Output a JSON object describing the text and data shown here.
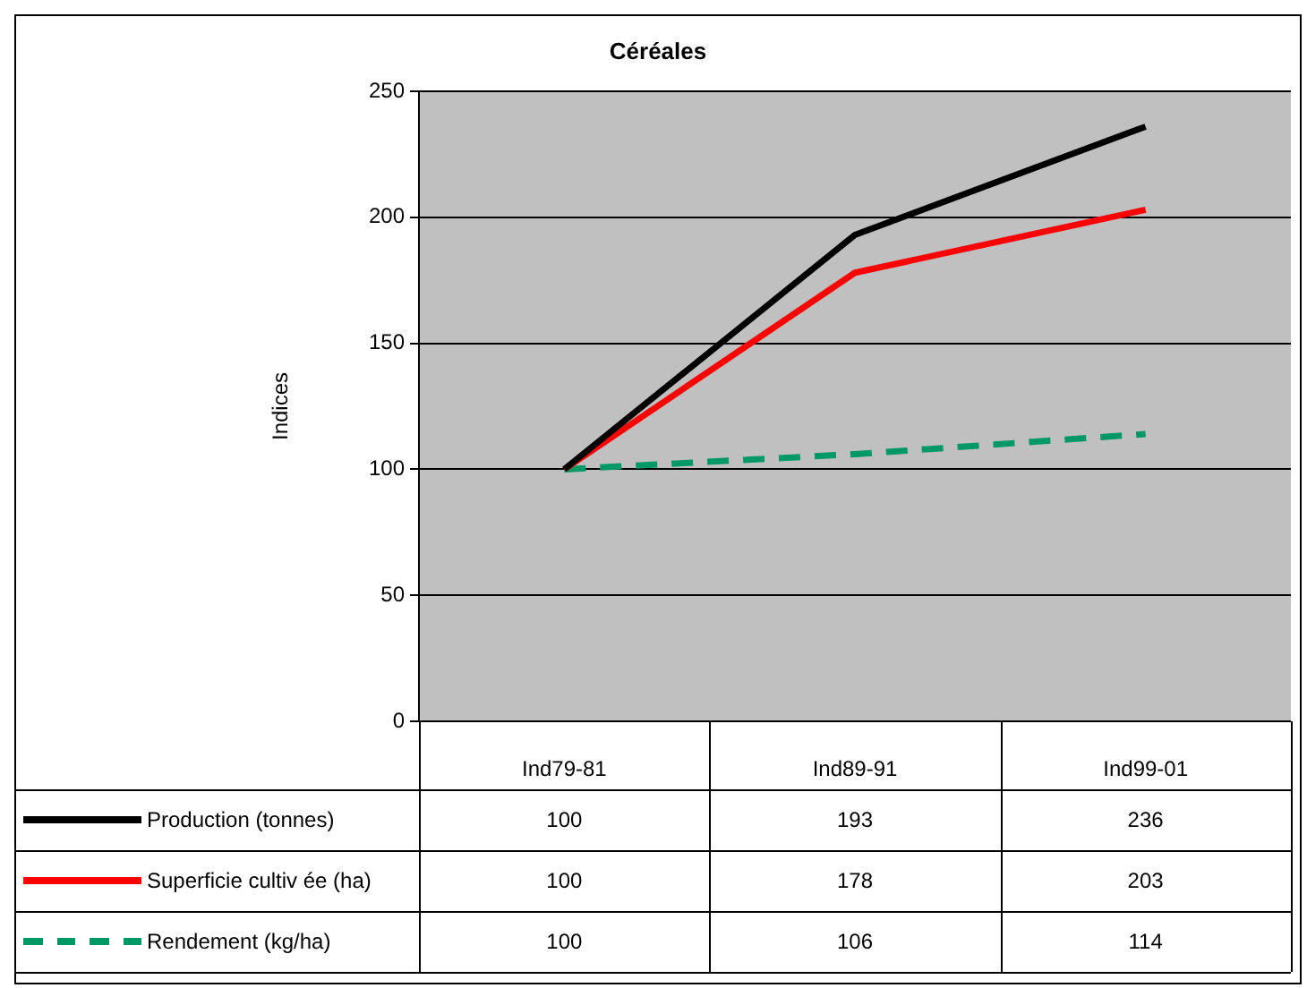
{
  "chart_data": {
    "type": "line",
    "title": "Céréales",
    "ylabel": "Indices",
    "categories": [
      "Ind79-81",
      "Ind89-91",
      "Ind99-01"
    ],
    "series": [
      {
        "name": "Production (tonnes)",
        "color": "#000000",
        "values": [
          100,
          193,
          236
        ],
        "line_style": "solid"
      },
      {
        "name": "Superficie cultiv ée (ha)",
        "color": "#ff0000",
        "values": [
          100,
          178,
          203
        ],
        "line_style": "solid"
      },
      {
        "name": "Rendement (kg/ha)",
        "color": "#009966",
        "values": [
          100,
          106,
          114
        ],
        "line_style": "dashed"
      }
    ],
    "ylim": [
      0,
      250
    ],
    "yticks": [
      0,
      50,
      100,
      150,
      200,
      250
    ],
    "grid": "y",
    "legend": "bottom",
    "data_labels": true,
    "marker": "none"
  }
}
